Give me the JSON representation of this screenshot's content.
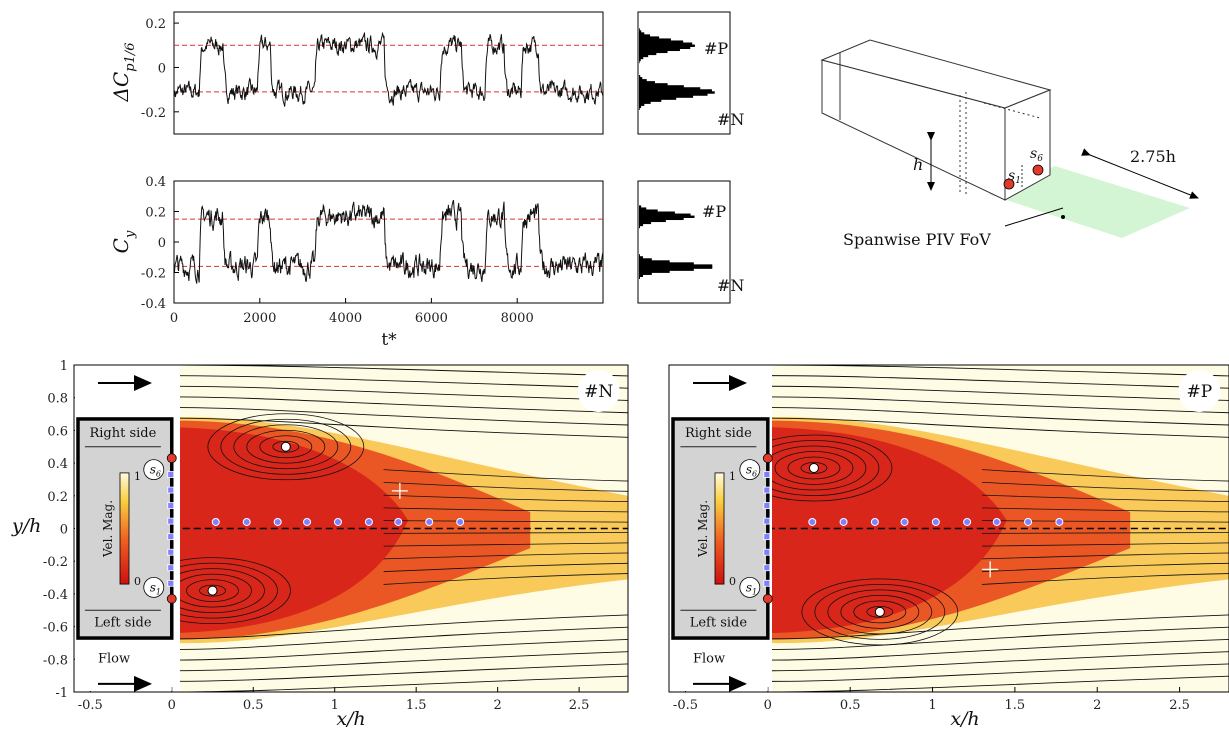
{
  "chart_data": [
    {
      "type": "line",
      "ylabel": "ΔC",
      "ylabel_sub": "p1/6",
      "xlabel": "",
      "xlim": [
        0,
        10000
      ],
      "ylim": [
        -0.3,
        0.25
      ],
      "yticks": [
        0.2,
        0,
        -0.2
      ],
      "ref_lines": [
        0.1,
        -0.11
      ],
      "levels": {
        "P": 0.1,
        "N": -0.11
      },
      "segments": [
        {
          "x": [
            0,
            600,
            900,
            1200,
            1450,
            1600,
            1900,
            2050,
            2250,
            2500,
            2700,
            2950,
            3200,
            3450,
            4900,
            5150,
            5250,
            5550,
            5800,
            6100,
            6200,
            6600,
            6750,
            6950,
            7250,
            7500,
            8100,
            8350,
            8800,
            9100,
            10000
          ],
          "level": [
            "N",
            "N",
            "P",
            "P",
            "N",
            "N",
            "P",
            "N",
            "P",
            "N",
            "N",
            "N",
            "N",
            "P",
            "P",
            "N",
            "N",
            "N",
            "N",
            "N",
            "P",
            "P",
            "N",
            "N",
            "P",
            "P",
            "N",
            "P",
            "P",
            "N",
            "N"
          ]
        }
      ],
      "hist_labels": [
        "#P",
        "#N"
      ]
    },
    {
      "type": "line",
      "ylabel": "C",
      "ylabel_sub": "y",
      "xlabel": "t*",
      "xlim": [
        0,
        10000
      ],
      "ylim": [
        -0.4,
        0.4
      ],
      "yticks": [
        0.4,
        0.2,
        0,
        -0.2,
        -0.4
      ],
      "xticks": [
        0,
        2000,
        4000,
        6000,
        8000
      ],
      "ref_lines": [
        0.15,
        -0.16
      ],
      "levels": {
        "P": 0.17,
        "N": -0.16
      },
      "hist_labels": [
        "#P",
        "#N"
      ]
    },
    {
      "type": "scatter",
      "xlabel": "x/h",
      "ylabel": "y/h",
      "xlim": [
        -0.6,
        2.8
      ],
      "ylim": [
        -1,
        1
      ],
      "xticks": [
        -0.5,
        0,
        0.5,
        1,
        1.5,
        2,
        2.5
      ],
      "yticks": [
        1,
        0.8,
        0.6,
        0.4,
        0.2,
        0,
        -0.2,
        -0.4,
        -0.6,
        -0.8,
        -1
      ],
      "state_label": "#N",
      "vortex_centers": [
        {
          "x": 0.7,
          "y": 0.5
        },
        {
          "x": 0.25,
          "y": -0.38
        }
      ],
      "saddle": {
        "x": 1.4,
        "y": 0.23
      },
      "probe_points_x": [
        0.27,
        0.46,
        0.65,
        0.83,
        1.02,
        1.21,
        1.39,
        1.58,
        1.77
      ]
    },
    {
      "type": "scatter",
      "xlabel": "x/h",
      "ylabel": "",
      "xlim": [
        -0.6,
        2.8
      ],
      "ylim": [
        -1,
        1
      ],
      "xticks": [
        -0.5,
        0,
        0.5,
        1,
        1.5,
        2,
        2.5
      ],
      "state_label": "#P",
      "vortex_centers": [
        {
          "x": 0.28,
          "y": 0.37
        },
        {
          "x": 0.68,
          "y": -0.51
        }
      ],
      "saddle": {
        "x": 1.35,
        "y": -0.25
      },
      "probe_points_x": [
        0.27,
        0.46,
        0.65,
        0.83,
        1.02,
        1.21,
        1.39,
        1.58,
        1.77
      ]
    }
  ],
  "figure": {
    "left_panel": {
      "right_side": "Right side",
      "left_side": "Left side",
      "colorbar_label": "Vel. Mag.",
      "cb_max": "1",
      "cb_min": "0",
      "s6": "6",
      "s1": "1",
      "flow": "Flow"
    },
    "schematic": {
      "h_label": "h",
      "dist_label": "2.75h",
      "fov_label": "Spanwise PIV FoV",
      "s1": "1",
      "s6": "6"
    }
  },
  "colors": {
    "field_high": "#d9261a",
    "field_low": "#fff27a",
    "ref_line": "#e03030",
    "probe": "#8080ff",
    "sensor": "#e03a2a",
    "fov": "#c8f0c8"
  }
}
